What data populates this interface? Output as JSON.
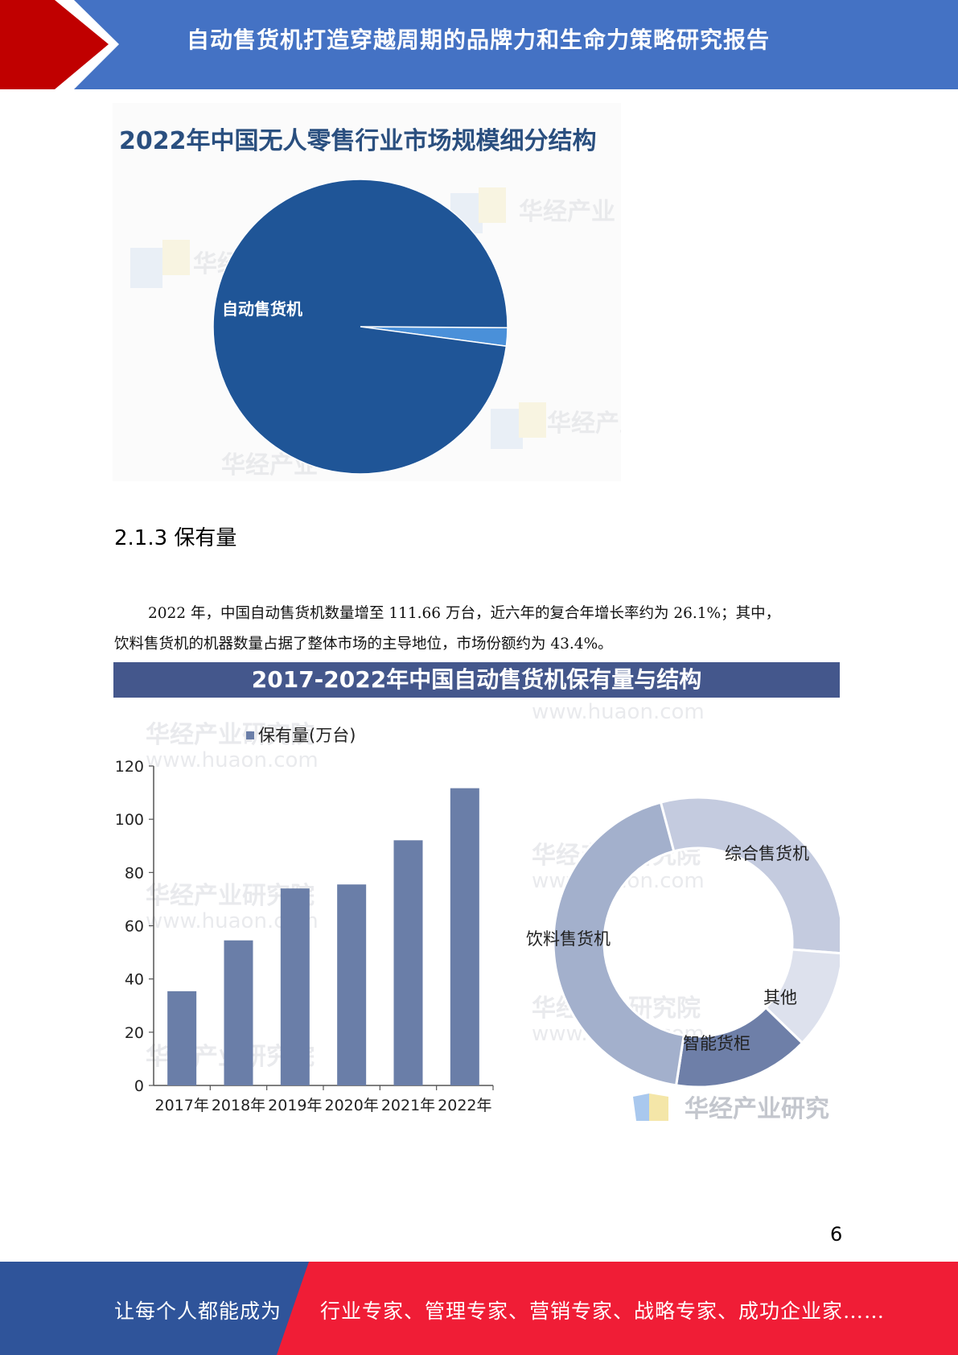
{
  "header": {
    "title": "自动售货机打造穿越周期的品牌力和生命力策略研究报告"
  },
  "chart1": {
    "title": "2022年中国无人零售行业市场规模细分结构",
    "watermark": "华经产业",
    "chart_data": {
      "type": "pie",
      "title": "2022年中国无人零售行业市场规模细分结构",
      "slices": [
        {
          "label": "自动售货机",
          "value": 98,
          "color": "#1f5597"
        },
        {
          "label": "",
          "value": 2,
          "color": "#4a90d9"
        }
      ],
      "legend": "none"
    }
  },
  "section": {
    "heading": "2.1.3 保有量"
  },
  "paragraph": {
    "line1": "2022 年，中国自动售货机数量增至 111.66 万台，近六年的复合年增长率约为 26.1%；其中，",
    "line2": "饮料售货机的机器数量占据了整体市场的主导地位，市场份额约为 43.4%。"
  },
  "chart2": {
    "title": "2017-2022年中国自动售货机保有量与结构",
    "watermark": "华经产业研究",
    "watermark_bg": "华经产业研究院",
    "watermark_url": "www.huaon.com",
    "chart_data": [
      {
        "type": "bar",
        "legend": "保有量(万台)",
        "legend_position": "top-left",
        "categories": [
          "2017年",
          "2018年",
          "2019年",
          "2020年",
          "2021年",
          "2022年"
        ],
        "series": [
          {
            "name": "保有量(万台)",
            "values": [
              35.4,
              54.5,
              74,
              75.5,
              92.1,
              111.66
            ]
          }
        ],
        "ylim": [
          0,
          120
        ],
        "yticks": [
          0,
          20,
          40,
          60,
          80,
          100,
          120
        ],
        "color": "#6a7ea8",
        "grid": false
      },
      {
        "type": "pie",
        "variant": "donut",
        "slices": [
          {
            "label": "饮料售货机",
            "value": 43.4,
            "color": "#a3b0cc"
          },
          {
            "label": "综合售货机",
            "value": 30.4,
            "color": "#c4cbdf"
          },
          {
            "label": "其他",
            "value": 11.0,
            "color": "#dde1ed"
          },
          {
            "label": "智能货柜",
            "value": 15.2,
            "color": "#6e7fa8"
          }
        ]
      }
    ]
  },
  "page_number": "6",
  "footer": {
    "left_text": "让每个人都能成为",
    "right_text": "行业专家、管理专家、营销专家、战略专家、成功企业家……"
  }
}
